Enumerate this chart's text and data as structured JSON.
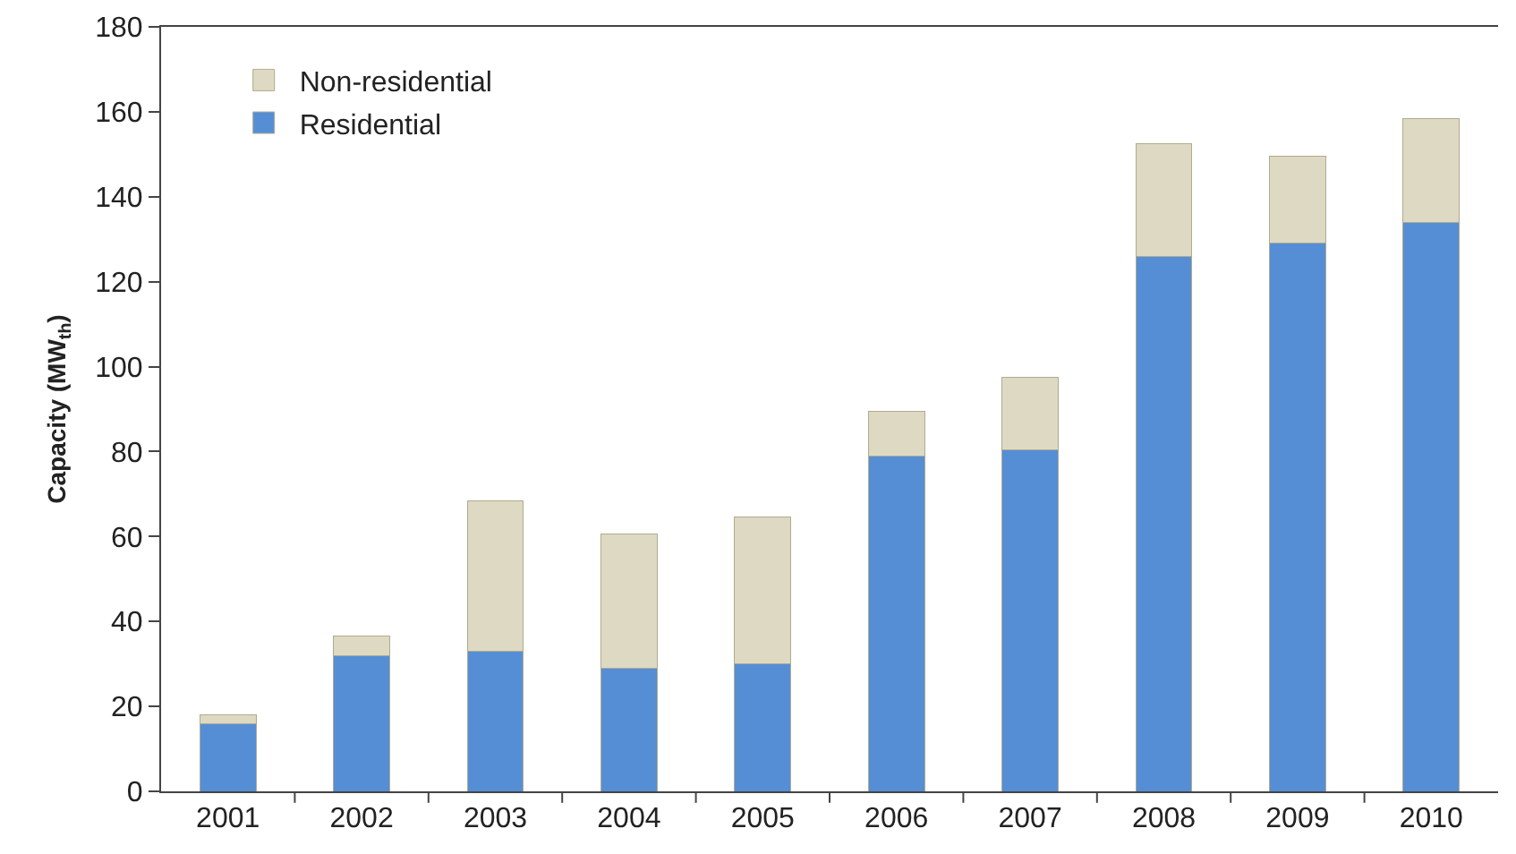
{
  "chart_data": {
    "type": "bar",
    "stacked": true,
    "ylabel": "Capacity (MW$_{th}$)",
    "categories": [
      "2001",
      "2002",
      "2003",
      "2004",
      "2005",
      "2006",
      "2007",
      "2008",
      "2009",
      "2010"
    ],
    "series": [
      {
        "name": "Residential",
        "color": "#558ed5",
        "values": [
          16,
          32,
          33,
          29,
          30,
          79,
          80.5,
          126,
          129,
          134
        ]
      },
      {
        "name": "Non-residential",
        "color": "#ddd9c3",
        "values": [
          2,
          4.5,
          35.5,
          31.5,
          34.5,
          10.5,
          17,
          26.5,
          20.5,
          24.5
        ]
      }
    ],
    "ylim": [
      0,
      180
    ],
    "yticks": [
      0,
      20,
      40,
      60,
      80,
      100,
      120,
      140,
      160,
      180
    ],
    "grid": false,
    "legend": "top left"
  }
}
